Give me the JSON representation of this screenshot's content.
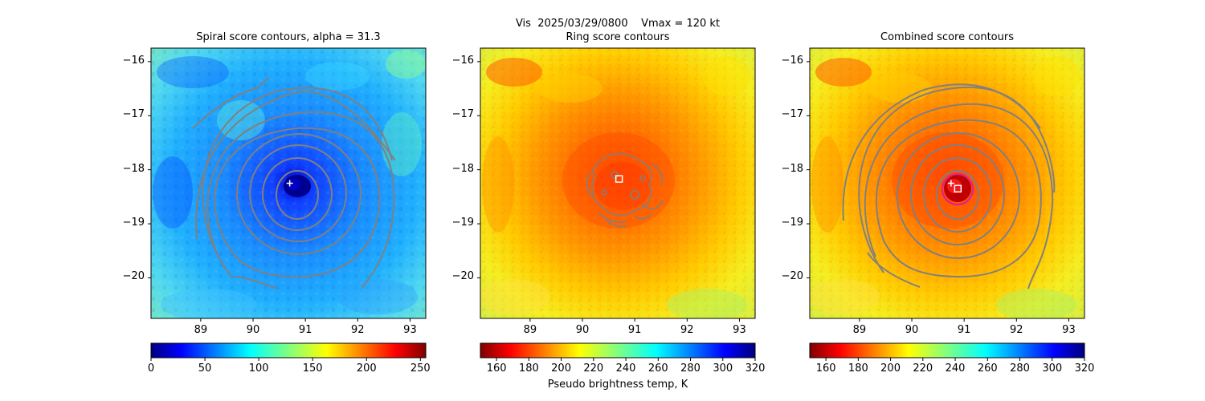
{
  "figure": {
    "suptitle": "Vis  2025/03/29/0800    Vmax = 120 kt"
  },
  "chart_data": [
    {
      "type": "heatmap",
      "title": "Spiral score contours, alpha = 31.3",
      "xlim": [
        88.05,
        93.3
      ],
      "ylim": [
        -20.75,
        -15.75
      ],
      "x_ticks": [
        89,
        90,
        91,
        92,
        93
      ],
      "y_ticks": [
        -16,
        -17,
        -18,
        -19,
        -20
      ],
      "x_tick_labels": [
        "89",
        "90",
        "91",
        "92",
        "93"
      ],
      "y_tick_labels": [
        "−16",
        "−17",
        "−18",
        "−19",
        "−20"
      ],
      "colormap": "jet",
      "colorbar": {
        "min": 0,
        "max": 255,
        "ticks": [
          0,
          50,
          100,
          150,
          200,
          250
        ],
        "tick_labels": [
          "0",
          "50",
          "100",
          "150",
          "200",
          "250"
        ]
      },
      "center_marker": {
        "symbol": "+",
        "lon": 90.7,
        "lat": -18.25
      },
      "contour_color": "#808080"
    },
    {
      "type": "heatmap",
      "title": "Ring score contours",
      "xlim": [
        88.05,
        93.3
      ],
      "ylim": [
        -20.75,
        -15.75
      ],
      "x_ticks": [
        89,
        90,
        91,
        92,
        93
      ],
      "y_ticks": [
        -16,
        -17,
        -18,
        -19,
        -20
      ],
      "x_tick_labels": [
        "89",
        "90",
        "91",
        "92",
        "93"
      ],
      "y_tick_labels": [
        "−16",
        "−17",
        "−18",
        "−19",
        "−20"
      ],
      "colormap": "jet_r",
      "colorbar": {
        "min": 150,
        "max": 320,
        "ticks": [
          160,
          180,
          200,
          220,
          240,
          260,
          280,
          300,
          320
        ],
        "tick_labels": [
          "160",
          "180",
          "200",
          "220",
          "240",
          "260",
          "280",
          "300",
          "320"
        ],
        "label": "Pseudo brightness temp, K"
      },
      "center_marker": {
        "symbol": "square",
        "lon": 90.7,
        "lat": -18.17
      },
      "contour_color": "#808080"
    },
    {
      "type": "heatmap",
      "title": "Combined score contours",
      "xlim": [
        88.05,
        93.3
      ],
      "ylim": [
        -20.75,
        -15.75
      ],
      "x_ticks": [
        89,
        90,
        91,
        92,
        93
      ],
      "y_ticks": [
        -16,
        -17,
        -18,
        -19,
        -20
      ],
      "x_tick_labels": [
        "89",
        "90",
        "91",
        "92",
        "93"
      ],
      "y_tick_labels": [
        "−16",
        "−17",
        "−18",
        "−19",
        "−20"
      ],
      "colormap": "jet_r",
      "colorbar": {
        "min": 150,
        "max": 320,
        "ticks": [
          160,
          180,
          200,
          220,
          240,
          260,
          280,
          300,
          320
        ],
        "tick_labels": [
          "160",
          "180",
          "200",
          "220",
          "240",
          "260",
          "280",
          "300",
          "320"
        ]
      },
      "center_markers": [
        {
          "symbol": "+",
          "lon": 90.75,
          "lat": -18.25
        },
        {
          "symbol": "square",
          "lon": 90.88,
          "lat": -18.35
        }
      ],
      "eye_circle": {
        "lon": 90.8,
        "lat": -18.3,
        "radius_deg": 0.3,
        "color": "#e0208c"
      },
      "contour_color": "#808080"
    }
  ]
}
